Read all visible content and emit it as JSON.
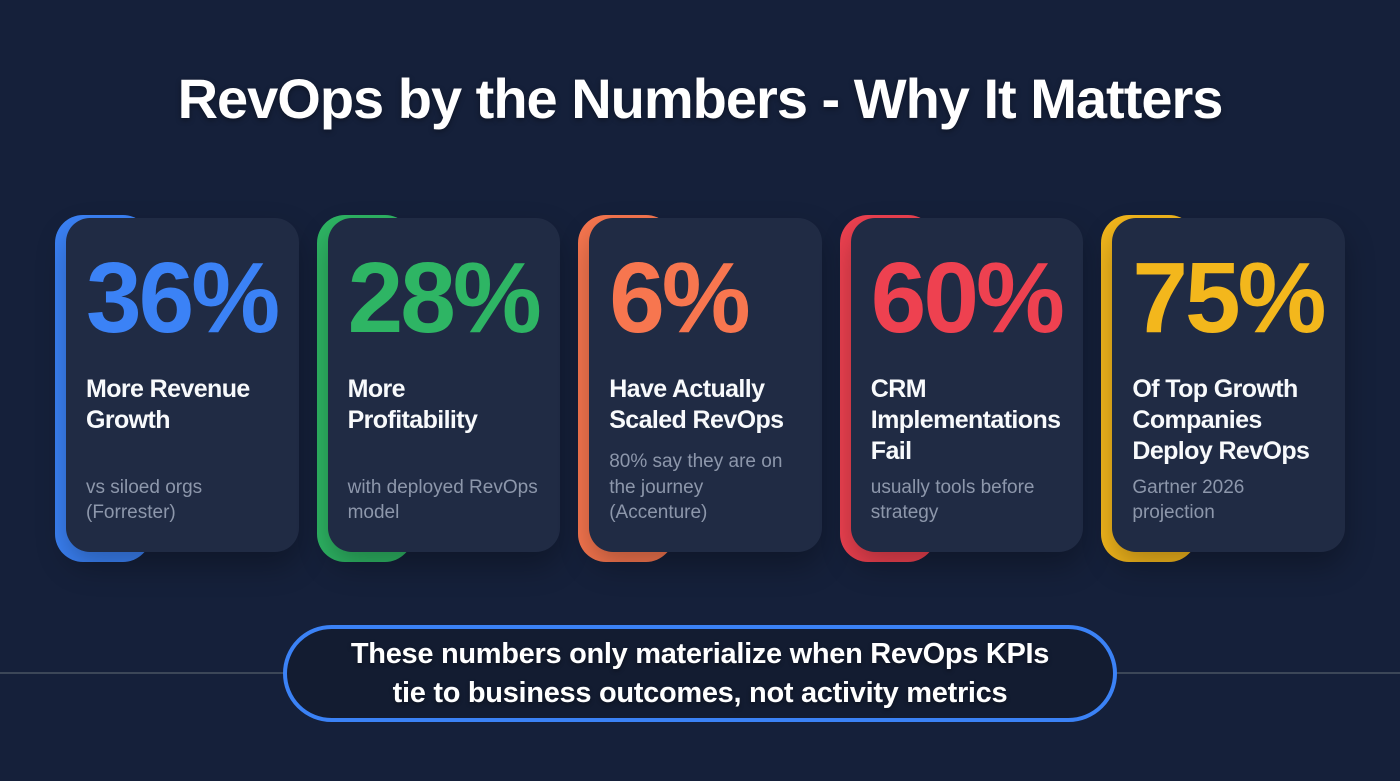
{
  "title": "RevOps by the Numbers - Why It Matters",
  "colors": {
    "background": "#15203a",
    "card_background": "#202b44",
    "divider": "#3c4758",
    "callout_border": "#3b82f6",
    "callout_background": "#131c31",
    "label_text": "#f8fafc",
    "note_text": "#8d97ab"
  },
  "cards": [
    {
      "value": "36%",
      "accent": "#3b82f6",
      "label": "More Revenue\nGrowth",
      "note": "vs siloed orgs\n(Forrester)"
    },
    {
      "value": "28%",
      "accent": "#2eb564",
      "label": "More\nProfitability",
      "note": "with deployed RevOps\nmodel"
    },
    {
      "value": "6%",
      "accent": "#f7764f",
      "label": "Have Actually\nScaled RevOps",
      "note": "80% say they are on\nthe journey (Accenture)"
    },
    {
      "value": "60%",
      "accent": "#ee4150",
      "label": "CRM\nImplementations\nFail",
      "note": "usually tools before\nstrategy"
    },
    {
      "value": "75%",
      "accent": "#f3b71c",
      "label": "Of Top Growth\nCompanies\nDeploy RevOps",
      "note": "Gartner 2026\nprojection"
    }
  ],
  "callout": {
    "text": "These numbers only materialize when RevOps KPIs\ntie to business outcomes, not activity metrics"
  }
}
